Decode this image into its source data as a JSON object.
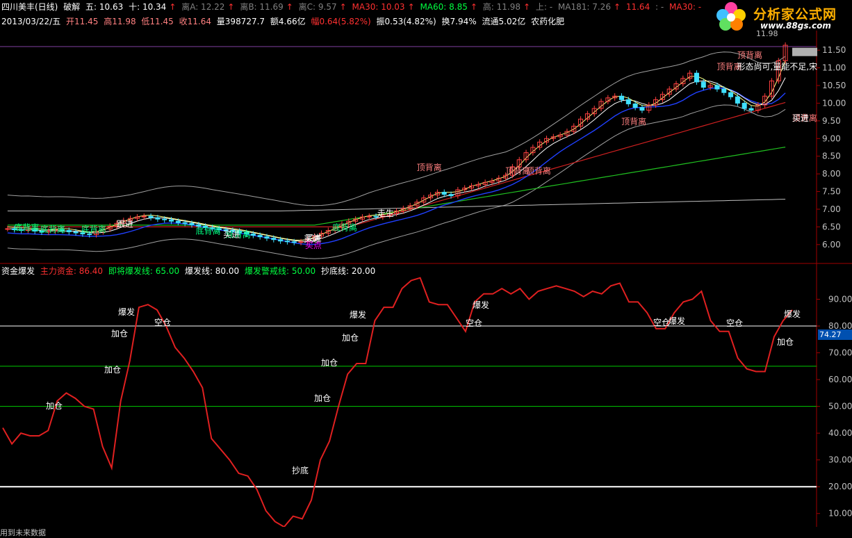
{
  "info_bar": {
    "name": "四川美丰(日线)",
    "indicator_label": "破解",
    "wu": "五: 10.63",
    "shi": "十: 10.34",
    "liA": "离A: 12.22",
    "liB": "离B: 11.69",
    "liC": "离C: 9.57",
    "ma30": "MA30: 10.03",
    "ma60": "MA60: 8.85",
    "gao": "高: 11.98",
    "shang": "上: -",
    "ma181": "MA181: 7.26",
    "v1164": "11.64",
    "dashes": ": -",
    "ma30b": "MA30: -"
  },
  "quote_bar": {
    "date": "2013/03/22/五",
    "open": "开11.45",
    "high": "高11.98",
    "low": "低11.45",
    "close": "收11.64",
    "volume": "量398727.7",
    "amount": "额4.66亿",
    "change": "幅0.64(5.82%)",
    "amplitude": "振0.53(4.82%)",
    "turnover": "换7.94%",
    "float": "流通5.02亿",
    "sector": "农药化肥"
  },
  "logo": {
    "title": "分析家公式网",
    "url": "www.88gs.com"
  },
  "upper_axis": [
    "11.50",
    "11.00",
    "10.50",
    "10.00",
    "9.50",
    "9.00",
    "8.50",
    "8.00",
    "7.50",
    "7.00",
    "6.50",
    "6.00"
  ],
  "peak_label": "11.98",
  "indicator_header": {
    "name": "资金爆发",
    "main_fund": "主力资金: 86.40",
    "near_burst": "即将爆发线: 65.00",
    "burst": "爆发线: 80.00",
    "warn": "爆发警戒线: 50.00",
    "bottom": "抄底线: 20.00"
  },
  "lower_axis": [
    "90.00",
    "80.00",
    "70.00",
    "60.00",
    "50.00",
    "40.00",
    "30.00",
    "20.00",
    "10.00"
  ],
  "current_value_tag": "74.27",
  "footer": "用到未来数据",
  "annotations_upper": [
    {
      "text": "顶背离",
      "color": "#ff8080"
    },
    {
      "text": "顶背离",
      "color": "#ff8080"
    },
    {
      "text": "顶背离",
      "color": "#ff8080"
    },
    {
      "text": "顶背离",
      "color": "#ff8080"
    },
    {
      "text": "顶背离",
      "color": "#ff8080"
    },
    {
      "text": "顶背离",
      "color": "#ff8080"
    },
    {
      "text": "顶背离",
      "color": "#ff8080"
    },
    {
      "text": "底背离",
      "color": "#00ff80"
    },
    {
      "text": "底背离",
      "color": "#00ff80"
    },
    {
      "text": "底背离",
      "color": "#00ff80"
    },
    {
      "text": "底背离",
      "color": "#00ff80"
    },
    {
      "text": "底背离",
      "color": "#00ff80"
    },
    {
      "text": "底背离",
      "color": "#00ff80"
    },
    {
      "text": "跟进",
      "color": "#ffffff"
    },
    {
      "text": "买进",
      "color": "#ffffff"
    },
    {
      "text": "买进",
      "color": "#ffffff"
    },
    {
      "text": "买点",
      "color": "#ff00ff"
    },
    {
      "text": "买进",
      "color": "#ffffff"
    },
    {
      "text": "走生",
      "color": "#ffffff"
    },
    {
      "text": "买进",
      "color": "#ffffff"
    },
    {
      "text": "形态尚可,量能不足,宋",
      "color": "#ffffff"
    }
  ],
  "annotations_lower": [
    {
      "text": "加仓",
      "color": "#ffffff"
    },
    {
      "text": "加仓",
      "color": "#ffffff"
    },
    {
      "text": "加仓",
      "color": "#ffffff"
    },
    {
      "text": "爆发",
      "color": "#ffffff"
    },
    {
      "text": "空仓",
      "color": "#ffffff"
    },
    {
      "text": "抄底",
      "color": "#ffffff"
    },
    {
      "text": "加仓",
      "color": "#ffffff"
    },
    {
      "text": "加仓",
      "color": "#ffffff"
    },
    {
      "text": "加仓",
      "color": "#ffffff"
    },
    {
      "text": "爆发",
      "color": "#ffffff"
    },
    {
      "text": "空仓",
      "color": "#ffffff"
    },
    {
      "text": "爆发",
      "color": "#ffffff"
    },
    {
      "text": "空仓",
      "color": "#ffffff"
    },
    {
      "text": "爆发",
      "color": "#ffffff"
    },
    {
      "text": "空仓",
      "color": "#ffffff"
    },
    {
      "text": "爆发",
      "color": "#ffffff"
    },
    {
      "text": "加仓",
      "color": "#ffffff"
    }
  ],
  "chart_data": [
    {
      "type": "candlestick",
      "title": "四川美丰(日线)",
      "ylim": [
        5.8,
        11.7
      ],
      "ma_series": [
        {
          "name": "MA30",
          "color": "#ff3030"
        },
        {
          "name": "MA60",
          "color": "#00ff40"
        },
        {
          "name": "MA181",
          "color": "#c0c0c0"
        }
      ],
      "closes": [
        6.45,
        6.42,
        6.4,
        6.43,
        6.38,
        6.35,
        6.38,
        6.42,
        6.4,
        6.36,
        6.33,
        6.3,
        6.28,
        6.36,
        6.44,
        6.52,
        6.6,
        6.68,
        6.74,
        6.78,
        6.8,
        6.76,
        6.72,
        6.7,
        6.66,
        6.62,
        6.6,
        6.56,
        6.52,
        6.48,
        6.45,
        6.42,
        6.4,
        6.38,
        6.34,
        6.3,
        6.26,
        6.22,
        6.18,
        6.14,
        6.1,
        6.08,
        6.06,
        6.08,
        6.15,
        6.24,
        6.32,
        6.4,
        6.48,
        6.58,
        6.66,
        6.72,
        6.78,
        6.8,
        6.78,
        6.82,
        6.88,
        6.95,
        7.02,
        7.1,
        7.2,
        7.32,
        7.4,
        7.48,
        7.42,
        7.38,
        7.55,
        7.6,
        7.66,
        7.7,
        7.76,
        7.8,
        7.88,
        7.96,
        8.2,
        8.4,
        8.6,
        8.75,
        8.9,
        9.0,
        9.05,
        9.1,
        9.2,
        9.35,
        9.55,
        9.7,
        9.85,
        10.05,
        10.15,
        10.2,
        10.1,
        9.98,
        9.88,
        9.8,
        9.95,
        10.1,
        10.25,
        10.4,
        10.55,
        10.7,
        10.85,
        10.6,
        10.45,
        10.5,
        10.4,
        10.3,
        10.18,
        10.0,
        9.85,
        9.8,
        9.95,
        10.2,
        10.63,
        11.2,
        11.64
      ]
    },
    {
      "type": "line",
      "title": "资金爆发",
      "ylim": [
        5,
        100
      ],
      "series": [
        {
          "name": "主力资金",
          "color": "#e02020",
          "values": [
            42,
            36,
            40,
            39,
            39,
            41,
            52,
            55,
            53,
            50,
            49,
            35,
            27,
            52,
            67,
            87,
            88,
            86,
            80,
            72,
            68,
            63,
            57,
            38,
            34,
            30,
            25,
            24,
            19,
            11,
            7,
            5,
            9,
            8,
            15,
            30,
            37,
            50,
            62,
            66,
            66,
            82,
            87,
            87,
            94,
            97,
            98,
            89,
            88,
            88,
            83,
            78,
            89,
            92,
            92,
            94,
            92,
            94,
            90,
            93,
            94,
            95,
            94,
            93,
            91,
            93,
            92,
            95,
            96,
            89,
            89,
            85,
            79,
            79,
            85,
            89,
            90,
            93,
            82,
            78,
            78,
            68,
            64,
            63,
            63,
            76,
            82,
            86
          ]
        }
      ],
      "reference_lines": [
        {
          "name": "爆发线",
          "value": 80,
          "color": "#ffffff"
        },
        {
          "name": "即将爆发线",
          "value": 65,
          "color": "#00cc00"
        },
        {
          "name": "爆发警戒线",
          "value": 50,
          "color": "#00cc00"
        },
        {
          "name": "抄底线",
          "value": 20,
          "color": "#ffffff"
        }
      ],
      "last_value": 86.4
    }
  ]
}
